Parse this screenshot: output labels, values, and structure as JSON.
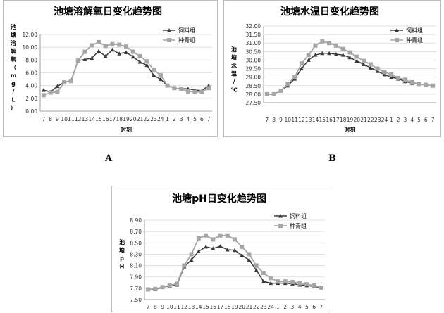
{
  "panel_labels": {
    "a": "A",
    "b": "B"
  },
  "chart_data": [
    {
      "type": "line",
      "title": "池塘溶解氧日变化趋势图",
      "xlabel": "时刻",
      "ylabel": "池塘溶解氧（mg/L）",
      "categories": [
        "7",
        "8",
        "9",
        "10",
        "11",
        "12",
        "13",
        "14",
        "15",
        "16",
        "17",
        "18",
        "19",
        "20",
        "21",
        "22",
        "23",
        "24",
        "1",
        "2",
        "3",
        "4",
        "5",
        "6",
        "7"
      ],
      "ylim": [
        0,
        12
      ],
      "yticks": [
        "0.00",
        "2.00",
        "4.00",
        "6.00",
        "8.00",
        "10.00",
        "12.00"
      ],
      "grid": true,
      "legend_position": "top-right",
      "series": [
        {
          "name": "饲料组",
          "color": "#3a3a3a",
          "marker": "triangle",
          "values": [
            3.3,
            3.0,
            3.9,
            4.5,
            4.8,
            7.9,
            8.1,
            8.3,
            9.4,
            8.6,
            9.6,
            9.0,
            9.2,
            8.5,
            7.7,
            7.2,
            5.6,
            5.0,
            4.0,
            3.6,
            3.5,
            3.5,
            3.3,
            3.2,
            4.0
          ]
        },
        {
          "name": "种青组",
          "color": "#a6a6a6",
          "marker": "square",
          "values": [
            2.5,
            2.9,
            3.0,
            4.5,
            4.7,
            7.9,
            9.3,
            10.3,
            10.8,
            10.2,
            10.5,
            10.4,
            10.1,
            9.3,
            8.6,
            7.8,
            6.5,
            5.6,
            4.0,
            3.6,
            3.5,
            3.1,
            3.0,
            3.0,
            3.6
          ]
        }
      ]
    },
    {
      "type": "line",
      "title": "池塘水温日变化趋势图",
      "xlabel": "时刻",
      "ylabel": "池塘水温/℃",
      "categories": [
        "7",
        "8",
        "9",
        "10",
        "11",
        "12",
        "13",
        "14",
        "15",
        "16",
        "17",
        "18",
        "19",
        "20",
        "21",
        "22",
        "23",
        "24",
        "1",
        "2",
        "3",
        "4",
        "5",
        "6",
        "7"
      ],
      "ylim": [
        27.5,
        32.0
      ],
      "yticks": [
        "27.50",
        "28.00",
        "28.50",
        "29.00",
        "29.50",
        "30.00",
        "30.50",
        "31.00",
        "31.50",
        "32.00"
      ],
      "grid": true,
      "legend_position": "top-right",
      "series": [
        {
          "name": "饲料组",
          "color": "#3a3a3a",
          "marker": "triangle",
          "values": [
            28.0,
            28.0,
            28.2,
            28.5,
            28.9,
            29.5,
            30.0,
            30.3,
            30.4,
            30.4,
            30.35,
            30.3,
            30.15,
            29.95,
            29.75,
            29.55,
            29.35,
            29.15,
            29.0,
            28.9,
            28.75,
            28.65,
            28.6,
            28.55,
            28.5
          ]
        },
        {
          "name": "种青组",
          "color": "#a6a6a6",
          "marker": "square",
          "values": [
            28.0,
            28.0,
            28.2,
            28.6,
            29.0,
            29.8,
            30.3,
            30.85,
            31.1,
            31.0,
            30.85,
            30.65,
            30.45,
            30.2,
            29.95,
            29.75,
            29.5,
            29.3,
            29.15,
            28.95,
            28.85,
            28.7,
            28.6,
            28.55,
            28.5
          ]
        }
      ]
    },
    {
      "type": "line",
      "title": "池塘pH日变化趋势图",
      "xlabel": "",
      "ylabel": "池塘pH",
      "categories": [
        "7",
        "8",
        "9",
        "10",
        "11",
        "12",
        "13",
        "14",
        "15",
        "16",
        "17",
        "18",
        "19",
        "20",
        "21",
        "22",
        "23",
        "24",
        "1",
        "2",
        "3",
        "4",
        "5",
        "6",
        "7"
      ],
      "ylim": [
        7.5,
        8.9
      ],
      "yticks": [
        "7.50",
        "7.70",
        "7.90",
        "8.10",
        "8.30",
        "8.50",
        "8.70",
        "8.90"
      ],
      "grid": true,
      "legend_position": "top-right",
      "series": [
        {
          "name": "饲料组",
          "color": "#3a3a3a",
          "marker": "triangle",
          "values": [
            7.68,
            7.68,
            7.72,
            7.74,
            7.76,
            8.08,
            8.2,
            8.35,
            8.43,
            8.4,
            8.44,
            8.38,
            8.37,
            8.28,
            8.2,
            8.02,
            7.82,
            7.79,
            7.79,
            7.79,
            7.78,
            7.76,
            7.75,
            7.73,
            7.71
          ]
        },
        {
          "name": "种青组",
          "color": "#a6a6a6",
          "marker": "square",
          "values": [
            7.68,
            7.69,
            7.72,
            7.75,
            7.78,
            8.1,
            8.3,
            8.58,
            8.63,
            8.56,
            8.63,
            8.63,
            8.56,
            8.43,
            8.3,
            8.1,
            7.97,
            7.88,
            7.82,
            7.82,
            7.81,
            7.79,
            7.77,
            7.75,
            7.71
          ]
        }
      ]
    }
  ]
}
